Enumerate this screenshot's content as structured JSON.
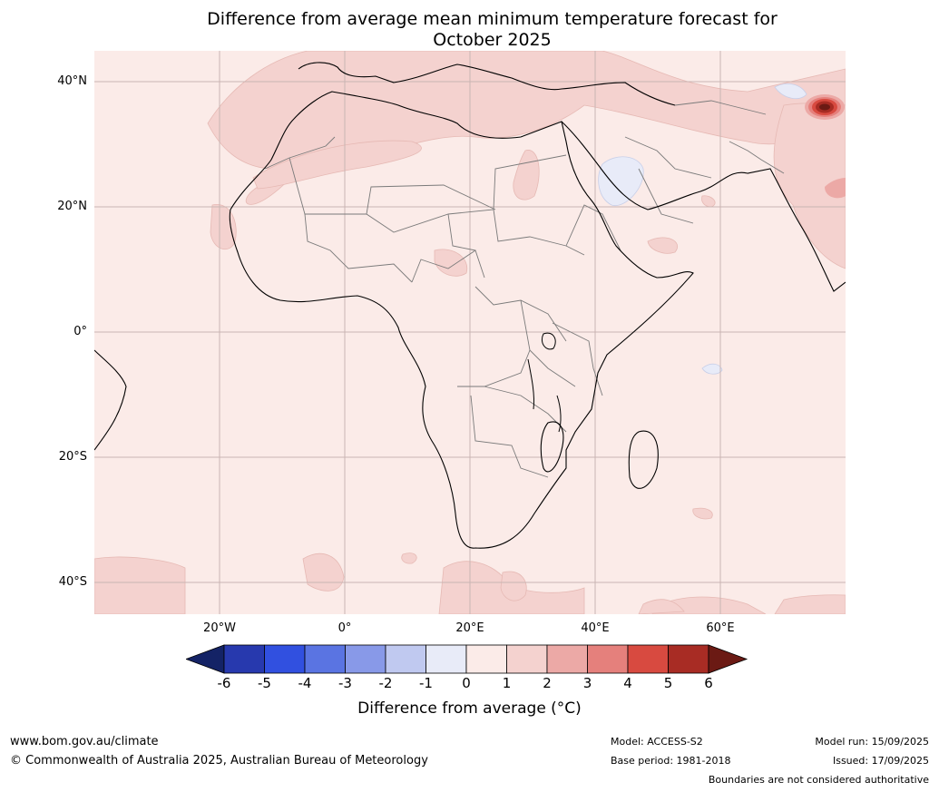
{
  "title_line1": "Difference from average mean minimum temperature forecast for",
  "title_line2": "October 2025",
  "map": {
    "lat_labels": [
      "40°N",
      "20°N",
      "0°",
      "20°S",
      "40°S"
    ],
    "lon_labels": [
      "20°W",
      "0°",
      "20°E",
      "40°E",
      "60°E"
    ],
    "ocean_color": "#fbebe8",
    "land_color": "#fbebe8"
  },
  "colorbar": {
    "ticks": [
      "-6",
      "-5",
      "-4",
      "-3",
      "-2",
      "-1",
      "0",
      "1",
      "2",
      "3",
      "4",
      "5",
      "6"
    ],
    "colors": [
      "#142366",
      "#2739ae",
      "#3150e0",
      "#5a74e2",
      "#8899e8",
      "#c0c9f0",
      "#e8ebf8",
      "#fbebe8",
      "#f4d2cf",
      "#eca9a6",
      "#e5807c",
      "#d84a40",
      "#a82c24",
      "#6b1a14"
    ],
    "label": "Difference from average (°C)"
  },
  "footer": {
    "website": "www.bom.gov.au/climate",
    "copyright": "© Commonwealth of Australia 2025, Australian Bureau of Meteorology",
    "model": "Model: ACCESS-S2",
    "base_period": "Base period: 1981-2018",
    "model_run": "Model run: 15/09/2025",
    "issued": "Issued: 17/09/2025",
    "boundaries_note": "Boundaries are not considered authoritative"
  }
}
